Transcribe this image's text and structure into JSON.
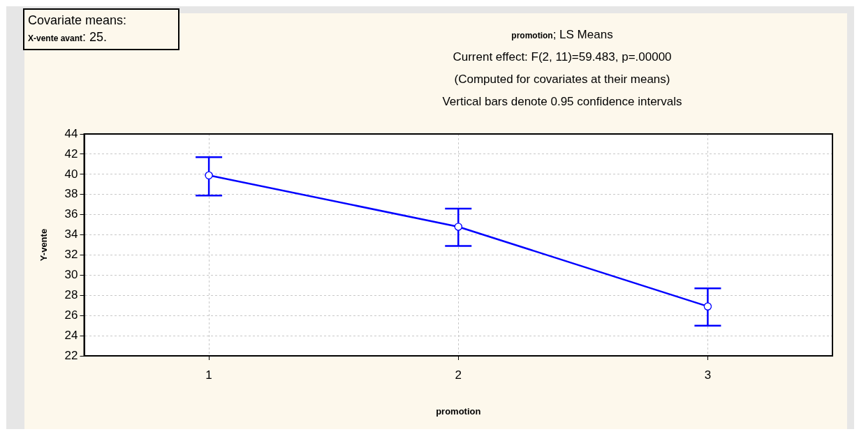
{
  "chart_data": {
    "type": "line",
    "title": "promotion; LS Means",
    "subtitle": "Current effect: F(2, 11)=59.483, p=.00000",
    "annotations": [
      "(Computed for covariates at their means)",
      "Vertical bars denote 0.95 confidence intervals",
      "Covariate means:",
      "X-vente avant: 25."
    ],
    "xlabel": "promotion",
    "ylabel": "Y-vente",
    "categories": [
      "1",
      "2",
      "3"
    ],
    "series": [
      {
        "color": "#0000ff",
        "values": [
          39.9,
          34.8,
          26.9
        ],
        "errors": [
          [
            37.9,
            41.7
          ],
          [
            32.9,
            36.6
          ],
          [
            25.0,
            28.7
          ]
        ]
      }
    ],
    "ylim": [
      22,
      44
    ],
    "yticks": [
      22,
      24,
      26,
      28,
      30,
      32,
      34,
      36,
      38,
      40,
      42,
      44
    ],
    "grid": true,
    "legend": false,
    "marker": "circle",
    "line_style": "solid"
  }
}
